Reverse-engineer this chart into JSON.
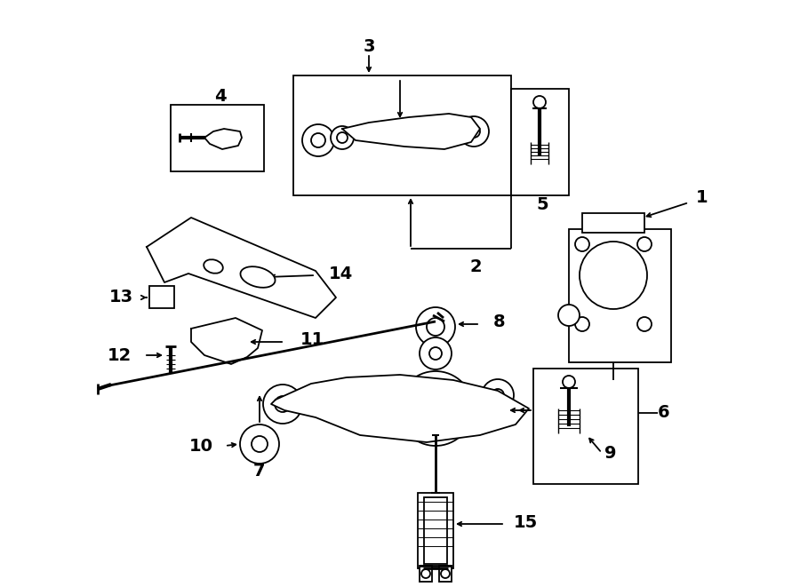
{
  "background": "#ffffff",
  "line_color": "#000000",
  "fig_width": 9.0,
  "fig_height": 6.61,
  "dpi": 100,
  "label_fontsize": 14,
  "lw": 1.3
}
